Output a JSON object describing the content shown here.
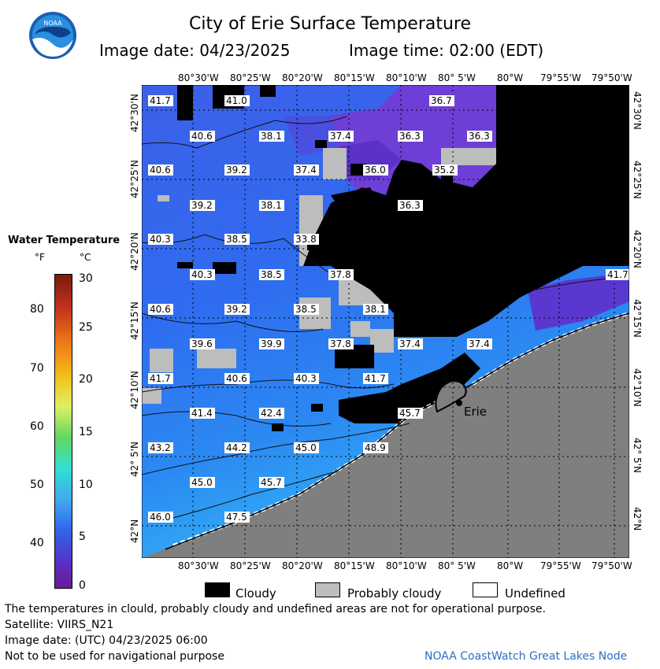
{
  "header": {
    "title": "City of Erie Surface Temperature",
    "image_date": "Image date: 04/23/2025",
    "image_time": "Image time: 02:00 (EDT)"
  },
  "logo": {
    "text": "NOAA"
  },
  "map": {
    "lon_top": [
      "80°30'W",
      "80°25'W",
      "80°20'W",
      "80°15'W",
      "80°10'W",
      "80° 5'W",
      "80°W",
      "79°55'W",
      "79°50'W"
    ],
    "lon_bottom": [
      "80°30'W",
      "80°25'W",
      "80°20'W",
      "80°15'W",
      "80°10'W",
      "80° 5'W",
      "80°W",
      "79°55'W",
      "79°50'W"
    ],
    "lat_left": [
      "42°30'N",
      "42°25'N",
      "42°20'N",
      "42°15'N",
      "42°10'N",
      "42° 5'N",
      "42°N"
    ],
    "lat_right": [
      "42°30'N",
      "42°25'N",
      "42°20'N",
      "42°15'N",
      "42°10'N",
      "42° 5'N",
      "42°N"
    ],
    "city_label": "Erie",
    "temperatures_f": [
      "41.7",
      "41.0",
      "36.7",
      "40.6",
      "38.1",
      "37.4",
      "36.3",
      "36.3",
      "40.6",
      "39.2",
      "37.4",
      "36.0",
      "35.2",
      "39.2",
      "38.1",
      "36.3",
      "40.3",
      "38.5",
      "33.8",
      "40.3",
      "38.5",
      "37.8",
      "41.7",
      "40.6",
      "39.2",
      "38.5",
      "38.1",
      "39.6",
      "39.9",
      "37.8",
      "37.4",
      "37.4",
      "41.7",
      "40.6",
      "40.3",
      "41.7",
      "41.4",
      "42.4",
      "45.7",
      "43.2",
      "44.2",
      "45.0",
      "48.9",
      "45.0",
      "45.7",
      "46.0",
      "47.5"
    ],
    "colors": {
      "land": "#7f7f7f",
      "cloud": "#000000",
      "probably_cloudy": "#bdbdbd",
      "undefined": "#ffffff"
    }
  },
  "colorbar": {
    "title": "Water Temperature",
    "unit_f": "°F",
    "unit_c": "°C",
    "f_labels": [
      "80",
      "70",
      "60",
      "50",
      "40"
    ],
    "c_labels": [
      "30",
      "25",
      "20",
      "15",
      "10",
      "5",
      "0"
    ]
  },
  "legend": {
    "cloudy": "Cloudy",
    "probably_cloudy": "Probably cloudy",
    "undefined": "Undefined"
  },
  "footer": {
    "line1": "The temperatures in clould, probably cloudy and undefined areas are not for operational purpose.",
    "line2": "Satellite: VIIRS_N21",
    "line3": "Image date: (UTC) 04/23/2025  06:00",
    "line4": "Not to be used for navigational purpose",
    "credit": "NOAA CoastWatch Great Lakes Node"
  }
}
